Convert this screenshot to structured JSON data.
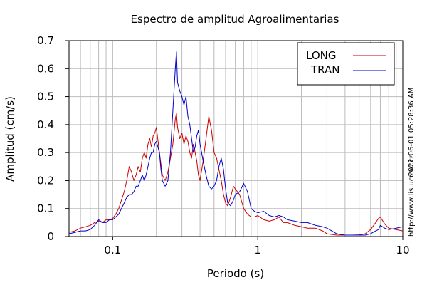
{
  "chart_data": {
    "type": "line",
    "title": "Espectro de amplitud Agroalimentarias",
    "xlabel": "Periodo (s)",
    "ylabel": "Amplitud (cm/s)",
    "x_scale": "log",
    "xlim": [
      0.05,
      10
    ],
    "ylim": [
      0,
      0.7
    ],
    "x_ticks": [
      {
        "value": 0.1,
        "label": "0.1"
      },
      {
        "value": 1,
        "label": "1"
      },
      {
        "value": 10,
        "label": "10"
      }
    ],
    "y_ticks": [
      {
        "value": 0,
        "label": "0"
      },
      {
        "value": 0.1,
        "label": "0.1"
      },
      {
        "value": 0.2,
        "label": "0.2"
      },
      {
        "value": 0.3,
        "label": "0.3"
      },
      {
        "value": 0.4,
        "label": "0.4"
      },
      {
        "value": 0.5,
        "label": "0.5"
      },
      {
        "value": 0.6,
        "label": "0.6"
      },
      {
        "value": 0.7,
        "label": "0.7"
      }
    ],
    "grid": true,
    "legend_position": "top-right",
    "series": [
      {
        "name": "LONG",
        "color": "#cc0000",
        "x": [
          0.05,
          0.055,
          0.06,
          0.065,
          0.07,
          0.075,
          0.08,
          0.085,
          0.09,
          0.095,
          0.1,
          0.105,
          0.11,
          0.115,
          0.12,
          0.125,
          0.13,
          0.135,
          0.14,
          0.145,
          0.15,
          0.155,
          0.16,
          0.165,
          0.17,
          0.175,
          0.18,
          0.185,
          0.19,
          0.195,
          0.2,
          0.21,
          0.215,
          0.22,
          0.23,
          0.24,
          0.25,
          0.26,
          0.27,
          0.275,
          0.28,
          0.29,
          0.3,
          0.31,
          0.32,
          0.33,
          0.34,
          0.35,
          0.36,
          0.37,
          0.38,
          0.39,
          0.4,
          0.42,
          0.44,
          0.46,
          0.48,
          0.5,
          0.52,
          0.54,
          0.56,
          0.58,
          0.6,
          0.62,
          0.65,
          0.68,
          0.7,
          0.75,
          0.8,
          0.85,
          0.9,
          0.95,
          1.0,
          1.1,
          1.2,
          1.3,
          1.4,
          1.5,
          1.6,
          1.8,
          2.0,
          2.2,
          2.5,
          2.8,
          3.0,
          3.5,
          4.0,
          4.5,
          5.0,
          5.5,
          6.0,
          6.5,
          6.8,
          7.0,
          7.5,
          8.0,
          9.0,
          10.0
        ],
        "y": [
          0.015,
          0.02,
          0.03,
          0.035,
          0.04,
          0.05,
          0.055,
          0.05,
          0.06,
          0.06,
          0.065,
          0.08,
          0.1,
          0.13,
          0.16,
          0.2,
          0.25,
          0.23,
          0.2,
          0.22,
          0.25,
          0.23,
          0.28,
          0.3,
          0.28,
          0.33,
          0.35,
          0.32,
          0.36,
          0.37,
          0.39,
          0.3,
          0.26,
          0.22,
          0.2,
          0.23,
          0.28,
          0.33,
          0.42,
          0.44,
          0.39,
          0.35,
          0.37,
          0.33,
          0.36,
          0.34,
          0.3,
          0.28,
          0.33,
          0.3,
          0.27,
          0.22,
          0.2,
          0.27,
          0.35,
          0.43,
          0.38,
          0.3,
          0.28,
          0.24,
          0.2,
          0.15,
          0.12,
          0.11,
          0.14,
          0.18,
          0.17,
          0.15,
          0.1,
          0.08,
          0.07,
          0.07,
          0.075,
          0.06,
          0.055,
          0.06,
          0.07,
          0.05,
          0.05,
          0.04,
          0.035,
          0.03,
          0.03,
          0.02,
          0.01,
          0.005,
          0.005,
          0.005,
          0.006,
          0.01,
          0.025,
          0.05,
          0.065,
          0.07,
          0.045,
          0.03,
          0.025,
          0.02
        ]
      },
      {
        "name": "TRAN",
        "color": "#0000cc",
        "x": [
          0.05,
          0.055,
          0.06,
          0.065,
          0.07,
          0.075,
          0.08,
          0.085,
          0.09,
          0.095,
          0.1,
          0.105,
          0.11,
          0.115,
          0.12,
          0.125,
          0.13,
          0.135,
          0.14,
          0.145,
          0.15,
          0.155,
          0.16,
          0.165,
          0.17,
          0.175,
          0.18,
          0.185,
          0.19,
          0.195,
          0.2,
          0.21,
          0.215,
          0.22,
          0.23,
          0.24,
          0.25,
          0.26,
          0.27,
          0.275,
          0.28,
          0.29,
          0.3,
          0.31,
          0.32,
          0.33,
          0.34,
          0.35,
          0.36,
          0.37,
          0.38,
          0.39,
          0.4,
          0.42,
          0.44,
          0.46,
          0.48,
          0.5,
          0.52,
          0.54,
          0.56,
          0.58,
          0.6,
          0.62,
          0.65,
          0.68,
          0.7,
          0.75,
          0.8,
          0.85,
          0.9,
          0.95,
          1.0,
          1.1,
          1.2,
          1.3,
          1.4,
          1.5,
          1.6,
          1.8,
          2.0,
          2.2,
          2.5,
          2.8,
          3.0,
          3.5,
          4.0,
          4.5,
          5.0,
          5.5,
          6.0,
          6.5,
          6.8,
          7.0,
          7.5,
          8.0,
          9.0,
          10.0
        ],
        "y": [
          0.01,
          0.015,
          0.02,
          0.02,
          0.025,
          0.04,
          0.06,
          0.05,
          0.05,
          0.06,
          0.06,
          0.07,
          0.08,
          0.1,
          0.12,
          0.14,
          0.15,
          0.15,
          0.16,
          0.18,
          0.18,
          0.2,
          0.22,
          0.2,
          0.22,
          0.25,
          0.28,
          0.3,
          0.3,
          0.33,
          0.34,
          0.3,
          0.24,
          0.2,
          0.18,
          0.2,
          0.3,
          0.45,
          0.6,
          0.66,
          0.55,
          0.52,
          0.5,
          0.47,
          0.5,
          0.43,
          0.4,
          0.35,
          0.3,
          0.32,
          0.36,
          0.38,
          0.33,
          0.27,
          0.22,
          0.18,
          0.17,
          0.18,
          0.2,
          0.25,
          0.28,
          0.24,
          0.17,
          0.12,
          0.11,
          0.13,
          0.15,
          0.16,
          0.19,
          0.16,
          0.1,
          0.09,
          0.085,
          0.09,
          0.075,
          0.07,
          0.075,
          0.07,
          0.06,
          0.055,
          0.05,
          0.05,
          0.04,
          0.035,
          0.03,
          0.01,
          0.005,
          0.005,
          0.005,
          0.005,
          0.01,
          0.02,
          0.025,
          0.04,
          0.03,
          0.025,
          0.03,
          0.035
        ]
      }
    ]
  },
  "timestamp": "2021-06-01 05:28:36 AM",
  "source_url": "http://www.lis.ucr.ac.cr"
}
